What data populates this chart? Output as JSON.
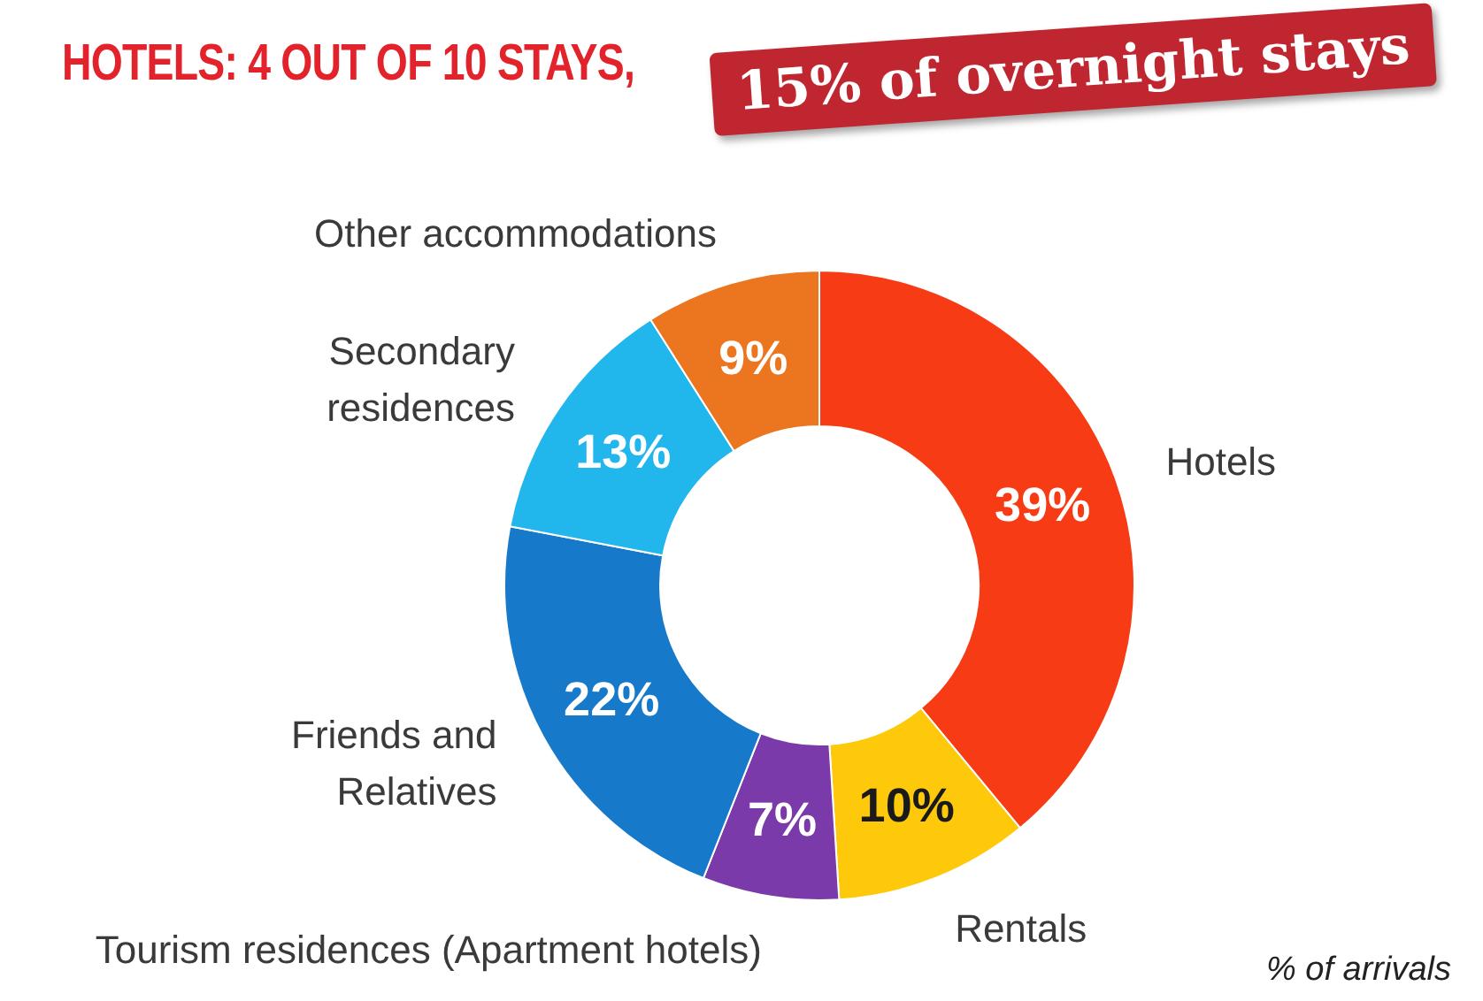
{
  "chart_data": {
    "type": "donut",
    "title": "HOTELS: 4 OUT OF 10 STAYS,",
    "subtitle": "15% of overnight stays",
    "categories": [
      "Hotels",
      "Rentals",
      "Tourism residences (Apartment hotels)",
      "Friends and Relatives",
      "Secondary residences",
      "Other accommodations"
    ],
    "values": [
      39,
      10,
      7,
      22,
      13,
      9
    ],
    "colors": [
      "#f73b14",
      "#fdc90a",
      "#7b3aa9",
      "#1679c9",
      "#21b6ec",
      "#ec761f"
    ],
    "value_labels": [
      "39%",
      "10%",
      "7%",
      "22%",
      "13%",
      "9%"
    ],
    "annotations": [
      "% of arrivals"
    ]
  }
}
